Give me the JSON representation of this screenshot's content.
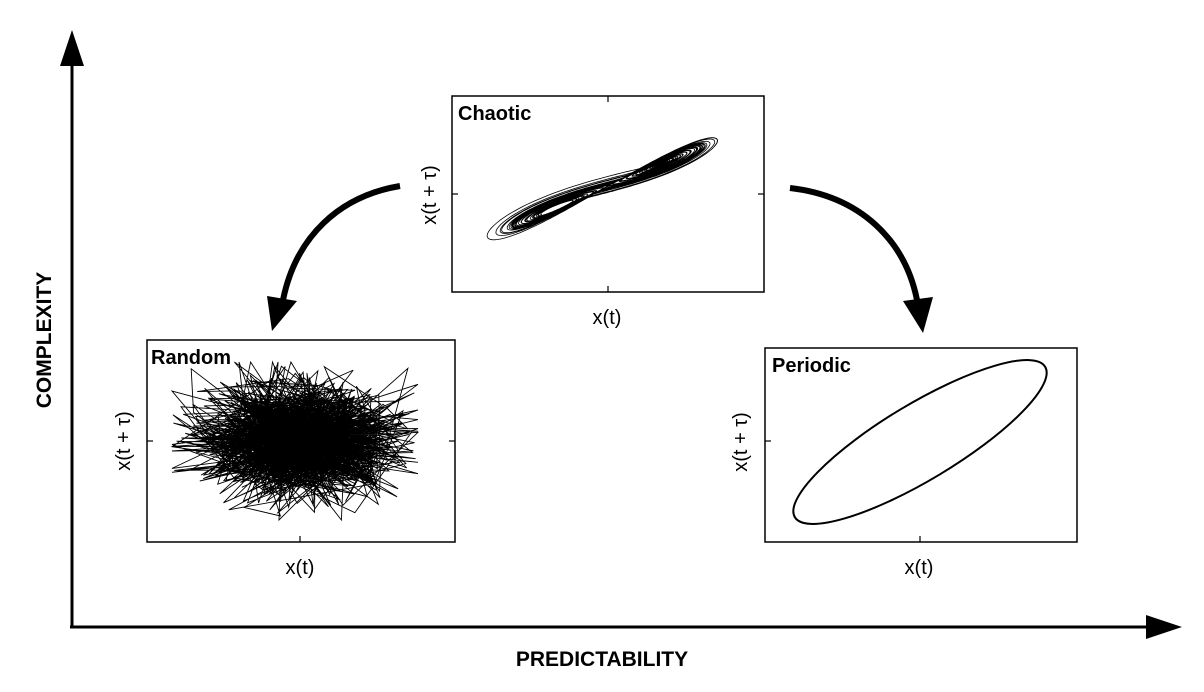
{
  "axes": {
    "x_title": "PREDICTABILITY",
    "y_title": "COMPLEXITY"
  },
  "panels": {
    "chaotic": {
      "title": "Chaotic",
      "xlabel": "x(t)",
      "ylabel": "x(t + τ)"
    },
    "random": {
      "title": "Random",
      "xlabel": "x(t)",
      "ylabel": "x(t + τ)"
    },
    "periodic": {
      "title": "Periodic",
      "xlabel": "x(t)",
      "ylabel": "x(t + τ)"
    }
  },
  "colors": {
    "ink": "#000000",
    "background": "#ffffff"
  }
}
